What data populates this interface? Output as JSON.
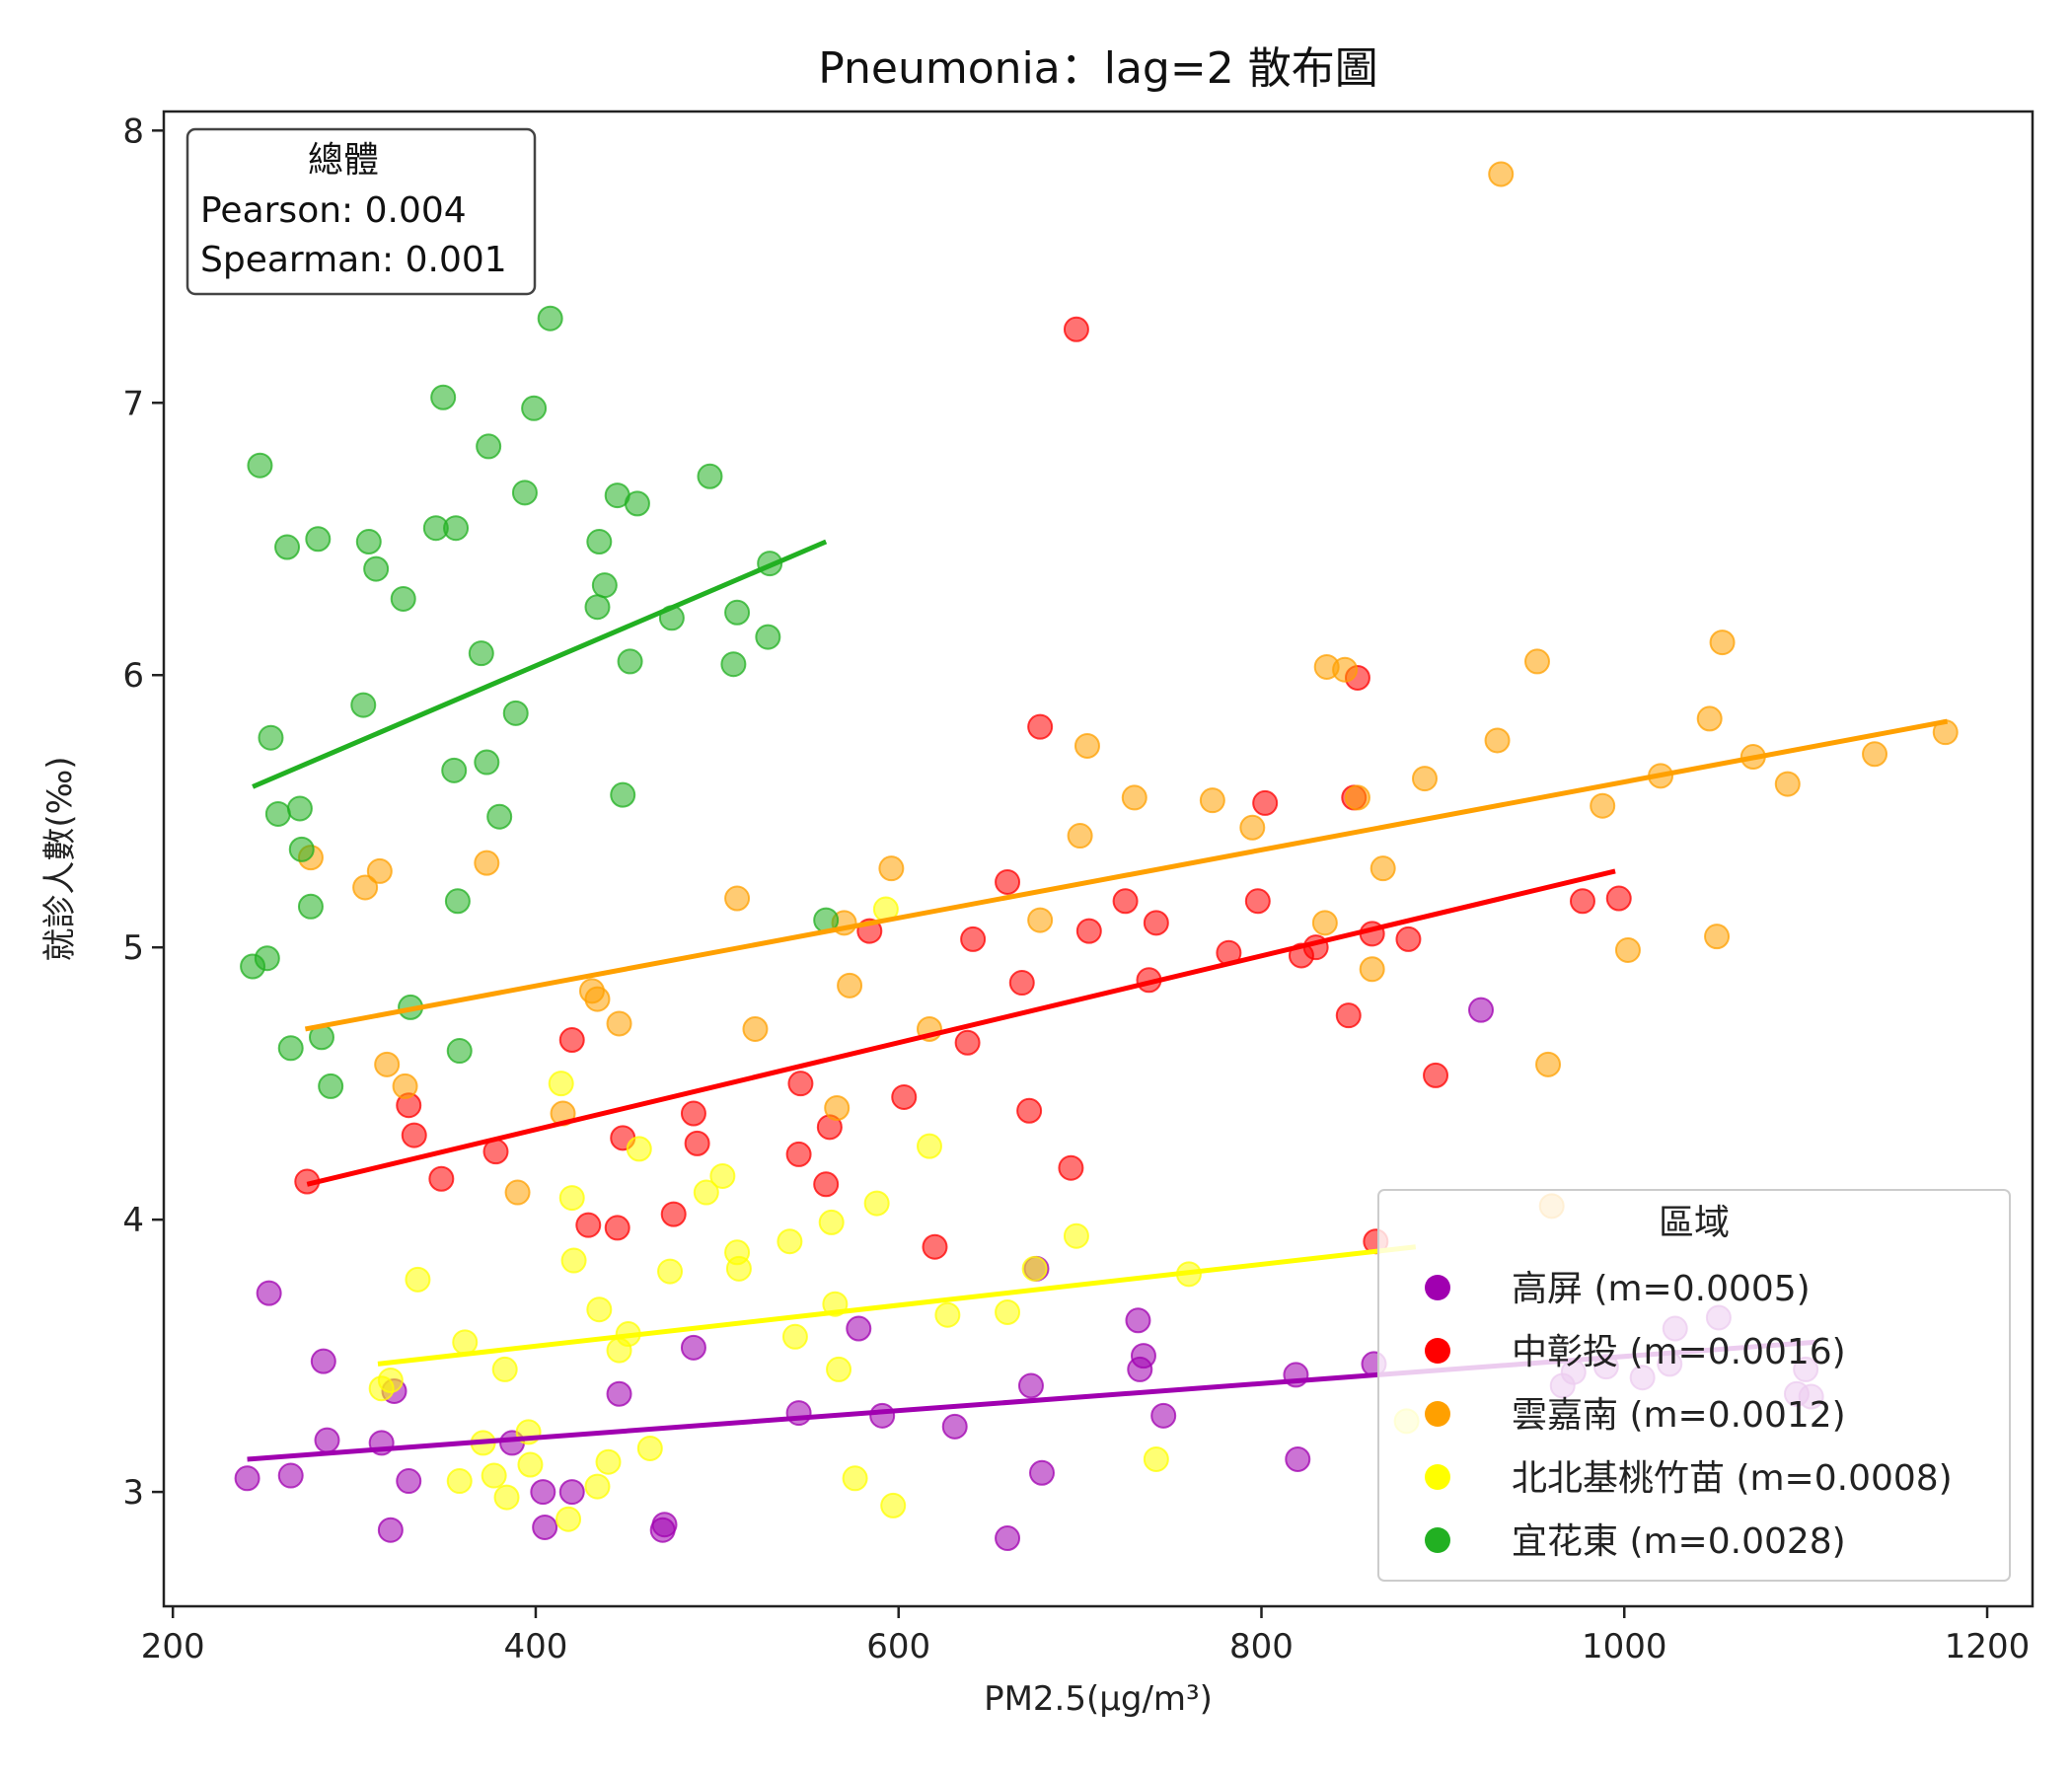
{
  "chart_data": {
    "type": "scatter",
    "title": "Pneumonia：lag=2 散布圖",
    "xlabel": "PM2.5(μg/m³)",
    "ylabel": "就診人數(‰)",
    "xlim": [
      195,
      1225
    ],
    "ylim": [
      2.58,
      8.07
    ],
    "xticks": [
      200,
      400,
      600,
      800,
      1000,
      1200
    ],
    "yticks": [
      3,
      4,
      5,
      6,
      7,
      8
    ],
    "xtick_labels": [
      "200",
      "400",
      "600",
      "800",
      "1000",
      "1200"
    ],
    "ytick_labels": [
      "3",
      "4",
      "5",
      "6",
      "7",
      "8"
    ],
    "grid": false,
    "stats_box": {
      "title": "總體",
      "lines": [
        "Pearson: 0.004",
        "Spearman: 0.001"
      ],
      "placement": "top-left"
    },
    "legend": {
      "title": "區域",
      "placement": "bottom-right"
    },
    "series": [
      {
        "name": "高屏 (m=0.0005)",
        "color": "#a000b0",
        "fit": {
          "x": [
            241,
            1105
          ],
          "y": [
            3.12,
            3.55
          ]
        },
        "points": [
          [
            241,
            3.05
          ],
          [
            253,
            3.73
          ],
          [
            265,
            3.06
          ],
          [
            283,
            3.48
          ],
          [
            285,
            3.19
          ],
          [
            315,
            3.18
          ],
          [
            320,
            2.86
          ],
          [
            322,
            3.37
          ],
          [
            330,
            3.04
          ],
          [
            387,
            3.18
          ],
          [
            404,
            3.0
          ],
          [
            405,
            2.87
          ],
          [
            420,
            3.0
          ],
          [
            446,
            3.36
          ],
          [
            470,
            2.86
          ],
          [
            471,
            2.88
          ],
          [
            487,
            3.53
          ],
          [
            545,
            3.29
          ],
          [
            578,
            3.6
          ],
          [
            591,
            3.28
          ],
          [
            631,
            3.24
          ],
          [
            660,
            2.83
          ],
          [
            673,
            3.39
          ],
          [
            676,
            3.82
          ],
          [
            679,
            3.07
          ],
          [
            732,
            3.63
          ],
          [
            733,
            3.45
          ],
          [
            735,
            3.5
          ],
          [
            746,
            3.28
          ],
          [
            819,
            3.43
          ],
          [
            820,
            3.12
          ],
          [
            862,
            3.47
          ],
          [
            921,
            4.77
          ],
          [
            966,
            3.39
          ],
          [
            972,
            3.44
          ],
          [
            990,
            3.46
          ],
          [
            1010,
            3.42
          ],
          [
            1025,
            3.47
          ],
          [
            1028,
            3.6
          ],
          [
            1052,
            3.64
          ],
          [
            1095,
            3.36
          ],
          [
            1100,
            3.45
          ],
          [
            1103,
            3.35
          ]
        ]
      },
      {
        "name": "中彰投 (m=0.0016)",
        "color": "#ff0000",
        "fit": {
          "x": [
            274,
            995
          ],
          "y": [
            4.13,
            5.28
          ]
        },
        "points": [
          [
            274,
            4.14
          ],
          [
            330,
            4.42
          ],
          [
            333,
            4.31
          ],
          [
            348,
            4.15
          ],
          [
            378,
            4.25
          ],
          [
            420,
            4.66
          ],
          [
            429,
            3.98
          ],
          [
            445,
            3.97
          ],
          [
            448,
            4.3
          ],
          [
            476,
            4.02
          ],
          [
            487,
            4.39
          ],
          [
            489,
            4.28
          ],
          [
            546,
            4.5
          ],
          [
            545,
            4.24
          ],
          [
            560,
            4.13
          ],
          [
            562,
            4.34
          ],
          [
            584,
            5.06
          ],
          [
            603,
            4.45
          ],
          [
            620,
            3.9
          ],
          [
            638,
            4.65
          ],
          [
            641,
            5.03
          ],
          [
            660,
            5.24
          ],
          [
            668,
            4.87
          ],
          [
            672,
            4.4
          ],
          [
            678,
            5.81
          ],
          [
            695,
            4.19
          ],
          [
            698,
            7.27
          ],
          [
            705,
            5.06
          ],
          [
            725,
            5.17
          ],
          [
            738,
            4.88
          ],
          [
            742,
            5.09
          ],
          [
            782,
            4.98
          ],
          [
            798,
            5.17
          ],
          [
            802,
            5.53
          ],
          [
            822,
            4.97
          ],
          [
            830,
            5.0
          ],
          [
            848,
            4.75
          ],
          [
            851,
            5.55
          ],
          [
            853,
            5.99
          ],
          [
            861,
            5.05
          ],
          [
            863,
            3.92
          ],
          [
            881,
            5.03
          ],
          [
            896,
            4.53
          ],
          [
            977,
            5.17
          ],
          [
            997,
            5.18
          ]
        ]
      },
      {
        "name": "雲嘉南 (m=0.0012)",
        "color": "#ffa000",
        "fit": {
          "x": [
            273,
            1178
          ],
          "y": [
            4.7,
            5.83
          ]
        },
        "points": [
          [
            276,
            5.33
          ],
          [
            306,
            5.22
          ],
          [
            314,
            5.28
          ],
          [
            318,
            4.57
          ],
          [
            328,
            4.49
          ],
          [
            373,
            5.31
          ],
          [
            390,
            4.1
          ],
          [
            415,
            4.39
          ],
          [
            431,
            4.84
          ],
          [
            434,
            4.81
          ],
          [
            446,
            4.72
          ],
          [
            511,
            5.18
          ],
          [
            521,
            4.7
          ],
          [
            566,
            4.41
          ],
          [
            570,
            5.09
          ],
          [
            573,
            4.86
          ],
          [
            596,
            5.29
          ],
          [
            617,
            4.7
          ],
          [
            678,
            5.1
          ],
          [
            700,
            5.41
          ],
          [
            704,
            5.74
          ],
          [
            730,
            5.55
          ],
          [
            773,
            5.54
          ],
          [
            795,
            5.44
          ],
          [
            835,
            5.09
          ],
          [
            836,
            6.03
          ],
          [
            846,
            6.02
          ],
          [
            853,
            5.55
          ],
          [
            861,
            4.92
          ],
          [
            867,
            5.29
          ],
          [
            890,
            5.62
          ],
          [
            930,
            5.76
          ],
          [
            932,
            7.84
          ],
          [
            952,
            6.05
          ],
          [
            958,
            4.57
          ],
          [
            960,
            4.05
          ],
          [
            988,
            5.52
          ],
          [
            1002,
            4.99
          ],
          [
            1020,
            5.63
          ],
          [
            1047,
            5.84
          ],
          [
            1051,
            5.04
          ],
          [
            1054,
            6.12
          ],
          [
            1071,
            5.7
          ],
          [
            1090,
            5.6
          ],
          [
            1138,
            5.71
          ],
          [
            1177,
            5.79
          ]
        ]
      },
      {
        "name": "北北基桃竹苗 (m=0.0008)",
        "color": "#ffff00",
        "fit": {
          "x": [
            313,
            885
          ],
          "y": [
            3.47,
            3.9
          ]
        },
        "points": [
          [
            315,
            3.38
          ],
          [
            320,
            3.41
          ],
          [
            335,
            3.78
          ],
          [
            358,
            3.04
          ],
          [
            361,
            3.55
          ],
          [
            371,
            3.18
          ],
          [
            377,
            3.06
          ],
          [
            383,
            3.45
          ],
          [
            384,
            2.98
          ],
          [
            396,
            3.22
          ],
          [
            397,
            3.1
          ],
          [
            414,
            4.5
          ],
          [
            418,
            2.9
          ],
          [
            420,
            4.08
          ],
          [
            421,
            3.85
          ],
          [
            434,
            3.02
          ],
          [
            435,
            3.67
          ],
          [
            440,
            3.11
          ],
          [
            446,
            3.52
          ],
          [
            451,
            3.58
          ],
          [
            457,
            4.26
          ],
          [
            463,
            3.16
          ],
          [
            474,
            3.81
          ],
          [
            494,
            4.1
          ],
          [
            503,
            4.16
          ],
          [
            511,
            3.88
          ],
          [
            512,
            3.82
          ],
          [
            540,
            3.92
          ],
          [
            543,
            3.57
          ],
          [
            563,
            3.99
          ],
          [
            565,
            3.69
          ],
          [
            567,
            3.45
          ],
          [
            576,
            3.05
          ],
          [
            588,
            4.06
          ],
          [
            593,
            5.14
          ],
          [
            597,
            2.95
          ],
          [
            617,
            4.27
          ],
          [
            627,
            3.65
          ],
          [
            660,
            3.66
          ],
          [
            675,
            3.82
          ],
          [
            698,
            3.94
          ],
          [
            742,
            3.12
          ],
          [
            760,
            3.8
          ],
          [
            880,
            3.26
          ]
        ]
      },
      {
        "name": "宜花東 (m=0.0028)",
        "color": "#22b022",
        "fit": {
          "x": [
            244,
            560
          ],
          "y": [
            5.59,
            6.49
          ]
        },
        "points": [
          [
            244,
            4.93
          ],
          [
            248,
            6.77
          ],
          [
            252,
            4.96
          ],
          [
            254,
            5.77
          ],
          [
            258,
            5.49
          ],
          [
            263,
            6.47
          ],
          [
            265,
            4.63
          ],
          [
            270,
            5.51
          ],
          [
            271,
            5.36
          ],
          [
            276,
            5.15
          ],
          [
            280,
            6.5
          ],
          [
            282,
            4.67
          ],
          [
            287,
            4.49
          ],
          [
            305,
            5.89
          ],
          [
            308,
            6.49
          ],
          [
            312,
            6.39
          ],
          [
            327,
            6.28
          ],
          [
            331,
            4.78
          ],
          [
            345,
            6.54
          ],
          [
            349,
            7.02
          ],
          [
            355,
            5.65
          ],
          [
            356,
            6.54
          ],
          [
            357,
            5.17
          ],
          [
            358,
            4.62
          ],
          [
            370,
            6.08
          ],
          [
            373,
            5.68
          ],
          [
            374,
            6.84
          ],
          [
            380,
            5.48
          ],
          [
            389,
            5.86
          ],
          [
            394,
            6.67
          ],
          [
            399,
            6.98
          ],
          [
            408,
            7.31
          ],
          [
            435,
            6.49
          ],
          [
            434,
            6.25
          ],
          [
            438,
            6.33
          ],
          [
            445,
            6.66
          ],
          [
            448,
            5.56
          ],
          [
            452,
            6.05
          ],
          [
            456,
            6.63
          ],
          [
            475,
            6.21
          ],
          [
            496,
            6.73
          ],
          [
            509,
            6.04
          ],
          [
            511,
            6.23
          ],
          [
            528,
            6.14
          ],
          [
            529,
            6.41
          ],
          [
            560,
            5.1
          ]
        ]
      }
    ]
  }
}
